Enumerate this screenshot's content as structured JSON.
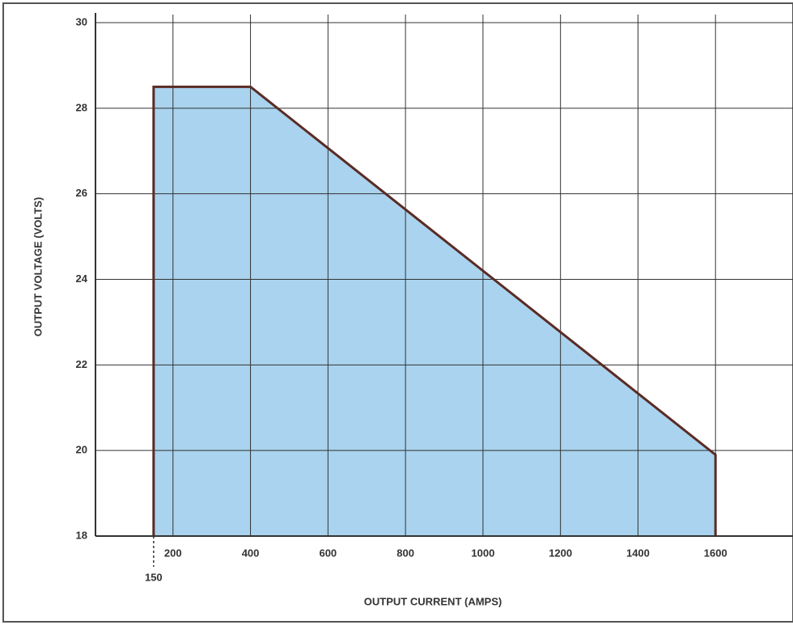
{
  "chart_data": {
    "type": "area",
    "x_label": "OUTPUT CURRENT (AMPS)",
    "y_label": "OUTPUT VOLTAGE (VOLTS)",
    "x": [
      150,
      150,
      400,
      1600,
      1600
    ],
    "values": [
      18,
      28.5,
      28.5,
      19.9,
      18
    ],
    "color": "#a9d3ee",
    "line_color": "#5b2b24",
    "xlim": [
      0,
      1800
    ],
    "ylim": [
      18,
      30
    ],
    "xticks": [
      200,
      400,
      600,
      800,
      1000,
      1200,
      1400,
      1600
    ],
    "yticks": [
      18,
      20,
      22,
      24,
      26,
      28,
      30
    ],
    "annotations": [
      {
        "text": "150",
        "x": 150
      }
    ],
    "grid": true
  }
}
